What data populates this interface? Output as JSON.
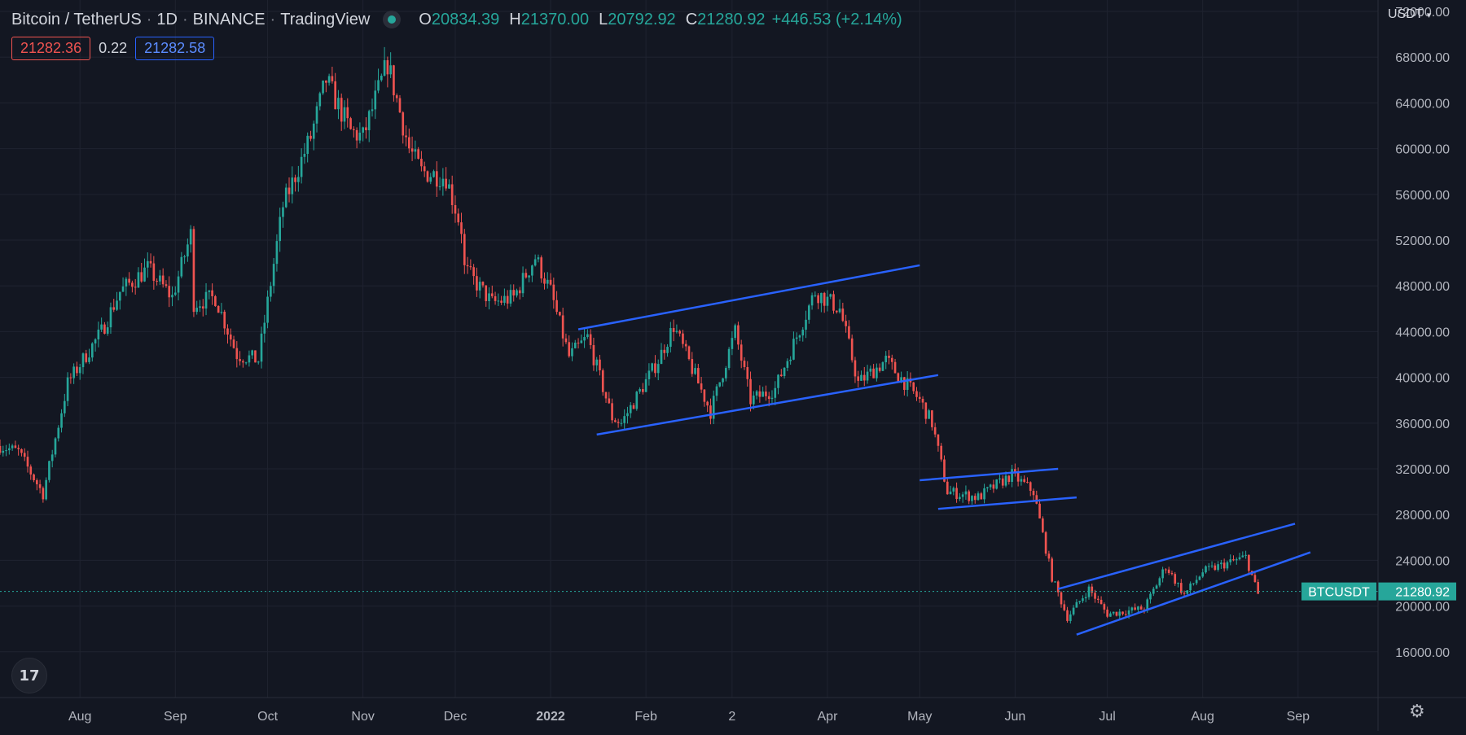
{
  "header": {
    "symbol": "Bitcoin / TetherUS",
    "interval": "1D",
    "exchange": "BINANCE",
    "source": "TradingView",
    "ohlc": {
      "o": "20834.39",
      "h": "21370.00",
      "l": "20792.92",
      "c": "21280.92"
    },
    "change": "+446.53 (+2.14%)"
  },
  "quotes": {
    "bid": "21282.36",
    "spread": "0.22",
    "ask": "21282.58"
  },
  "currency": "USDT",
  "colors": {
    "up": "#26a69a",
    "down": "#ef5350",
    "channel": "#2962ff",
    "background": "#131722"
  },
  "icons": {
    "logo": "tradingview-logo-icon",
    "settings": "gear-icon"
  },
  "chart_data": {
    "type": "candlestick",
    "symbol": "BTCUSDT",
    "interval": "1D",
    "grid": true,
    "ylim": [
      12000,
      73000
    ],
    "y_ticks": [
      "72000.00",
      "68000.00",
      "64000.00",
      "60000.00",
      "56000.00",
      "52000.00",
      "48000.00",
      "44000.00",
      "40000.00",
      "36000.00",
      "32000.00",
      "28000.00",
      "24000.00",
      "20000.00",
      "16000.00"
    ],
    "x_ticks": [
      {
        "label": "Aug",
        "date": "2021-08-01"
      },
      {
        "label": "Sep",
        "date": "2021-09-01"
      },
      {
        "label": "Oct",
        "date": "2021-10-01"
      },
      {
        "label": "Nov",
        "date": "2021-11-01"
      },
      {
        "label": "Dec",
        "date": "2021-12-01"
      },
      {
        "label": "2022",
        "date": "2022-01-01",
        "bold": true
      },
      {
        "label": "Feb",
        "date": "2022-02-01"
      },
      {
        "label": "2",
        "date": "2022-03-01"
      },
      {
        "label": "Apr",
        "date": "2022-04-01"
      },
      {
        "label": "May",
        "date": "2022-05-01"
      },
      {
        "label": "Jun",
        "date": "2022-06-01"
      },
      {
        "label": "Jul",
        "date": "2022-07-01"
      },
      {
        "label": "Aug",
        "date": "2022-08-01"
      },
      {
        "label": "Sep",
        "date": "2022-09-01"
      }
    ],
    "x_range": [
      "2021-07-06",
      "2022-09-27"
    ],
    "price_path": [
      [
        "2021-07-06",
        34000
      ],
      [
        "2021-07-12",
        33500
      ],
      [
        "2021-07-20",
        29800
      ],
      [
        "2021-07-28",
        39500
      ],
      [
        "2021-08-08",
        44000
      ],
      [
        "2021-08-14",
        47500
      ],
      [
        "2021-08-23",
        49500
      ],
      [
        "2021-08-31",
        47000
      ],
      [
        "2021-09-06",
        52500
      ],
      [
        "2021-09-07",
        46500
      ],
      [
        "2021-09-14",
        47000
      ],
      [
        "2021-09-21",
        42000
      ],
      [
        "2021-09-28",
        41500
      ],
      [
        "2021-10-06",
        55000
      ],
      [
        "2021-10-15",
        61000
      ],
      [
        "2021-10-20",
        66000
      ],
      [
        "2021-10-28",
        61500
      ],
      [
        "2021-11-01",
        61000
      ],
      [
        "2021-11-09",
        67500
      ],
      [
        "2021-11-16",
        60000
      ],
      [
        "2021-11-20",
        58000
      ],
      [
        "2021-11-28",
        57500
      ],
      [
        "2021-12-03",
        53000
      ],
      [
        "2021-12-04",
        49500
      ],
      [
        "2021-12-13",
        46500
      ],
      [
        "2021-12-20",
        47000
      ],
      [
        "2021-12-27",
        50500
      ],
      [
        "2022-01-01",
        47500
      ],
      [
        "2022-01-07",
        41800
      ],
      [
        "2022-01-13",
        43500
      ],
      [
        "2022-01-21",
        36500
      ],
      [
        "2022-01-24",
        36000
      ],
      [
        "2022-02-05",
        41500
      ],
      [
        "2022-02-10",
        44500
      ],
      [
        "2022-02-22",
        37000
      ],
      [
        "2022-03-02",
        44000
      ],
      [
        "2022-03-07",
        38000
      ],
      [
        "2022-03-15",
        39000
      ],
      [
        "2022-03-28",
        47500
      ],
      [
        "2022-04-05",
        46000
      ],
      [
        "2022-04-11",
        39500
      ],
      [
        "2022-04-20",
        41500
      ],
      [
        "2022-05-01",
        38000
      ],
      [
        "2022-05-05",
        36000
      ],
      [
        "2022-05-10",
        30000
      ],
      [
        "2022-05-20",
        29500
      ],
      [
        "2022-05-31",
        31500
      ],
      [
        "2022-06-07",
        30000
      ],
      [
        "2022-06-13",
        22500
      ],
      [
        "2022-06-18",
        19000
      ],
      [
        "2022-06-25",
        21500
      ],
      [
        "2022-07-01",
        19300
      ],
      [
        "2022-07-13",
        19800
      ],
      [
        "2022-07-20",
        23500
      ],
      [
        "2022-07-26",
        21000
      ],
      [
        "2022-08-01",
        23000
      ],
      [
        "2022-08-15",
        24300
      ],
      [
        "2022-08-19",
        21000
      ]
    ],
    "last_price": {
      "label": "BTCUSDT",
      "value": "21280.92"
    },
    "trendlines": [
      {
        "from": [
          "2022-01-10",
          44200
        ],
        "to": [
          "2022-05-01",
          49800
        ]
      },
      {
        "from": [
          "2022-01-16",
          35000
        ],
        "to": [
          "2022-05-07",
          40200
        ]
      },
      {
        "from": [
          "2022-05-01",
          31000
        ],
        "to": [
          "2022-06-15",
          32000
        ]
      },
      {
        "from": [
          "2022-05-07",
          28500
        ],
        "to": [
          "2022-06-21",
          29500
        ]
      },
      {
        "from": [
          "2022-06-15",
          21500
        ],
        "to": [
          "2022-08-31",
          27200
        ]
      },
      {
        "from": [
          "2022-06-21",
          17500
        ],
        "to": [
          "2022-09-05",
          24700
        ]
      }
    ]
  }
}
